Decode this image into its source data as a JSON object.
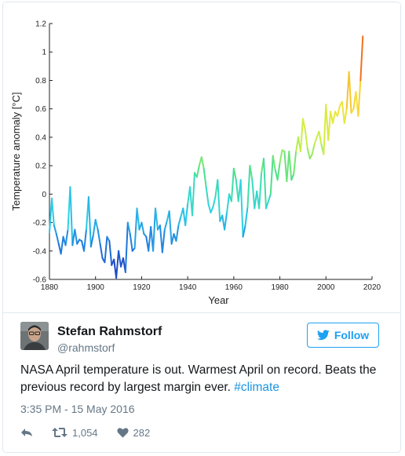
{
  "chart_data": {
    "type": "line",
    "xlabel": "Year",
    "ylabel": "Temperature anomaly [°C]",
    "xlim": [
      1880,
      2020
    ],
    "ylim": [
      -0.6,
      1.2
    ],
    "x_ticks": [
      "1880",
      "1900",
      "1920",
      "1940",
      "1960",
      "1980",
      "2000",
      "2020"
    ],
    "y_ticks": [
      "-0.6",
      "-0.4",
      "-0.2",
      "0",
      "0.2",
      "0.4",
      "0.6",
      "0.8",
      "1",
      "1.2"
    ],
    "colormap": [
      "#1f2fb8",
      "#1f7fe0",
      "#2bd3e8",
      "#4ee08a",
      "#c6f04a",
      "#f7e23a",
      "#f79a1f",
      "#e8261e"
    ],
    "grid": false,
    "series": [
      {
        "x": [
          1880,
          1881,
          1882,
          1883,
          1884,
          1885,
          1886,
          1887,
          1888,
          1889,
          1890,
          1891,
          1892,
          1893,
          1894,
          1895,
          1896,
          1897,
          1898,
          1899,
          1900,
          1901,
          1902,
          1903,
          1904,
          1905,
          1906,
          1907,
          1908,
          1909,
          1910,
          1911,
          1912,
          1913,
          1914,
          1915,
          1916,
          1917,
          1918,
          1919,
          1920,
          1921,
          1922,
          1923,
          1924,
          1925,
          1926,
          1927,
          1928,
          1929,
          1930,
          1931,
          1932,
          1933,
          1934,
          1935,
          1936,
          1937,
          1938,
          1939,
          1940,
          1941,
          1942,
          1943,
          1944,
          1945,
          1946,
          1947,
          1948,
          1949,
          1950,
          1951,
          1952,
          1953,
          1954,
          1955,
          1956,
          1957,
          1958,
          1959,
          1960,
          1961,
          1962,
          1963,
          1964,
          1965,
          1966,
          1967,
          1968,
          1969,
          1970,
          1971,
          1972,
          1973,
          1974,
          1975,
          1976,
          1977,
          1978,
          1979,
          1980,
          1981,
          1982,
          1983,
          1984,
          1985,
          1986,
          1987,
          1988,
          1989,
          1990,
          1991,
          1992,
          1993,
          1994,
          1995,
          1996,
          1997,
          1998,
          1999,
          2000,
          2001,
          2002,
          2003,
          2004,
          2005,
          2006,
          2007,
          2008,
          2009,
          2010,
          2011,
          2012,
          2013,
          2014,
          2015,
          2016
        ],
        "y": [
          -0.27,
          -0.03,
          -0.22,
          -0.28,
          -0.35,
          -0.42,
          -0.3,
          -0.36,
          -0.25,
          0.05,
          -0.36,
          -0.25,
          -0.35,
          -0.32,
          -0.33,
          -0.4,
          -0.25,
          -0.02,
          -0.37,
          -0.29,
          -0.18,
          -0.25,
          -0.35,
          -0.45,
          -0.48,
          -0.3,
          -0.33,
          -0.5,
          -0.46,
          -0.59,
          -0.4,
          -0.51,
          -0.45,
          -0.55,
          -0.2,
          -0.28,
          -0.4,
          -0.38,
          -0.1,
          -0.25,
          -0.2,
          -0.28,
          -0.3,
          -0.4,
          -0.23,
          -0.4,
          -0.1,
          -0.25,
          -0.22,
          -0.41,
          -0.25,
          -0.19,
          -0.12,
          -0.35,
          -0.28,
          -0.33,
          -0.22,
          -0.16,
          -0.1,
          -0.22,
          -0.07,
          0.05,
          -0.15,
          0.15,
          0.12,
          0.2,
          0.26,
          0.18,
          0.05,
          -0.07,
          -0.13,
          -0.09,
          -0.02,
          0.1,
          -0.19,
          -0.15,
          -0.25,
          -0.13,
          0.0,
          -0.05,
          0.18,
          0.1,
          -0.05,
          0.1,
          -0.3,
          -0.22,
          -0.09,
          0.2,
          0.1,
          -0.1,
          0.02,
          -0.1,
          0.15,
          0.25,
          -0.1,
          -0.05,
          0.0,
          0.27,
          0.17,
          0.1,
          0.22,
          0.31,
          0.3,
          0.09,
          0.3,
          0.1,
          0.14,
          0.3,
          0.4,
          0.3,
          0.53,
          0.45,
          0.32,
          0.25,
          0.28,
          0.35,
          0.4,
          0.44,
          0.35,
          0.28,
          0.63,
          0.38,
          0.58,
          0.5,
          0.58,
          0.55,
          0.62,
          0.65,
          0.5,
          0.6,
          0.86,
          0.57,
          0.6,
          0.72,
          0.55,
          0.8,
          1.11
        ]
      }
    ]
  },
  "tweet": {
    "author_name": "Stefan Rahmstorf",
    "author_handle": "@rahmstorf",
    "follow_label": "Follow",
    "text": "NASA April temperature is out. Warmest April on record. Beats the previous record by largest margin ever.",
    "hashtag": "#climate",
    "timestamp": "3:35 PM - 15 May 2016",
    "retweet_count": "1,054",
    "like_count": "282"
  },
  "colors": {
    "accent": "#1da1f2",
    "hashtag": "#1b95e0",
    "muted": "#657786"
  },
  "icons": {
    "follow": "bird-icon",
    "reply": "reply-icon",
    "retweet": "retweet-icon",
    "like": "heart-icon"
  }
}
